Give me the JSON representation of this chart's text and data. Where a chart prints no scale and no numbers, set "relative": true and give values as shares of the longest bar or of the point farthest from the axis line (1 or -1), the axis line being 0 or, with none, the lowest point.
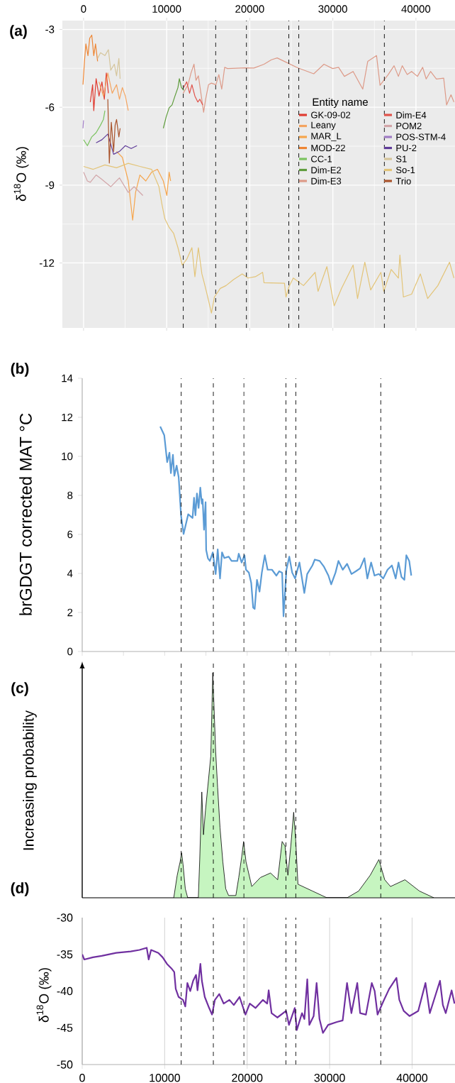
{
  "chart_data": [
    {
      "type": "line",
      "annotations": [
        "(a)"
      ],
      "ylabel": "δ$^{18}$O (‰)",
      "legend_title": "Entity name",
      "legend": "right",
      "grid": true,
      "xlim": [
        -2550,
        44700
      ],
      "ylim": [
        -14.5,
        -2.66
      ],
      "xticks": [
        0,
        10000,
        20000,
        30000,
        40000
      ],
      "yticks": [
        -12,
        -9,
        -6,
        -3
      ],
      "ref_lines": [
        {
          "axis": "x",
          "value": 12000
        },
        {
          "axis": "x",
          "value": 15900
        },
        {
          "axis": "x",
          "value": 19600
        },
        {
          "axis": "x",
          "value": 24700
        },
        {
          "axis": "x",
          "value": 25900
        },
        {
          "axis": "x",
          "value": 36200
        }
      ],
      "series": [
        {
          "name": "GK-09-02",
          "color": "#e03c31",
          "x": [
            810,
            1090,
            1230,
            1510,
            1860,
            2210,
            2500,
            2740,
            2990
          ],
          "values": [
            -5.8,
            -5.13,
            -6.13,
            -4.9,
            -5.57,
            -5.02,
            -5.69,
            -4.68,
            -5.46
          ]
        },
        {
          "name": "Leany",
          "color": "#f4a460",
          "x": [
            1860,
            2390,
            2920,
            3450,
            3970,
            4320,
            4670,
            5030,
            5380
          ],
          "values": [
            -5.02,
            -5.57,
            -4.68,
            -5.46,
            -5.13,
            -5.69,
            -5.24,
            -5.57,
            -6.13
          ]
        },
        {
          "name": "MAR_L",
          "color": "#f6a54c",
          "x": [
            3970,
            4670,
            5380,
            5910,
            6260,
            6780,
            7490,
            8190,
            8890,
            9600,
            10020,
            10300,
            10480
          ],
          "values": [
            -7.7,
            -7.93,
            -8.84,
            -10.35,
            -9.28,
            -8.61,
            -8.84,
            -8.5,
            -8.39,
            -8.84,
            -9.4,
            -8.5,
            -8.84
          ]
        },
        {
          "name": "MOD-22",
          "color": "#ee8533",
          "x": [
            -70,
            110,
            280,
            530,
            740,
            990,
            1230,
            1440,
            1690
          ],
          "values": [
            -5.13,
            -4.23,
            -3.56,
            -4.01,
            -3.34,
            -3.22,
            -4.01,
            -3.56,
            -4.23
          ]
        },
        {
          "name": "CC-1",
          "color": "#7bc35f",
          "x": [
            0,
            460,
            990,
            1510,
            2040,
            2390,
            2570
          ],
          "values": [
            -7.25,
            -7.48,
            -7.14,
            -6.98,
            -6.69,
            -6.47,
            -6.13
          ]
        },
        {
          "name": "Dim-E2",
          "color": "#5e9c3c",
          "x": [
            9600,
            9950,
            10300,
            10650,
            11000,
            11360,
            11530,
            11780,
            12060
          ],
          "values": [
            -6.81,
            -6.36,
            -6.02,
            -5.91,
            -5.57,
            -5.24,
            -4.9,
            -5.24,
            -5.35
          ]
        },
        {
          "name": "Dim-E3",
          "color": "#dd9a88",
          "x": [
            11990,
            12580,
            12930,
            13290,
            13530,
            13820,
            14170,
            14450,
            14690,
            15040,
            15390,
            15930,
            16280,
            16630,
            16980,
            17330,
            19440,
            20500,
            21720,
            22600,
            23300,
            24540,
            25760,
            27700,
            28930,
            29980,
            30690,
            31390,
            32440,
            33600,
            34200,
            35260,
            35680,
            36660,
            37370,
            37890,
            38350,
            38950,
            39480,
            40180,
            40810,
            41230,
            41760,
            42460,
            43340,
            43690,
            44220,
            44570
          ],
          "values": [
            -5.46,
            -5.13,
            -4.68,
            -4.34,
            -4.96,
            -4.79,
            -5.57,
            -6.19,
            -5.69,
            -5.13,
            -5.07,
            -5.13,
            -4.74,
            -5.3,
            -4.46,
            -4.51,
            -4.48,
            -4.49,
            -4.34,
            -4.17,
            -4.1,
            -4.29,
            -4.48,
            -4.71,
            -4.34,
            -4.51,
            -4.46,
            -4.81,
            -4.62,
            -5.3,
            -4.23,
            -4.01,
            -5.15,
            -4.74,
            -4.4,
            -4.81,
            -4.4,
            -4.74,
            -4.62,
            -4.81,
            -4.46,
            -4.91,
            -4.62,
            -4.91,
            -4.88,
            -5.91,
            -5.52,
            -5.8
          ]
        },
        {
          "name": "Dim-E4",
          "color": "#e0524a",
          "x": [
            12060,
            12410,
            12760,
            13040,
            13400,
            13750,
            13990,
            14340
          ],
          "values": [
            -5.24,
            -5.02,
            -5.46,
            -5.13,
            -5.57,
            -5.8,
            -5.69,
            -5.91
          ]
        },
        {
          "name": "POM2",
          "color": "#d2a5a8",
          "x": [
            0,
            460,
            810,
            1510,
            2210,
            3270,
            4320,
            5380,
            6080,
            7140
          ],
          "values": [
            -8.5,
            -8.84,
            -8.89,
            -8.61,
            -8.78,
            -9.06,
            -8.72,
            -9.28,
            -9.06,
            -9.4
          ]
        },
        {
          "name": "POS-STM-4",
          "color": "#a07cc5",
          "x": [
            -70,
            0
          ],
          "values": [
            -6.81,
            -6.5
          ]
        },
        {
          "name": "PU-2",
          "color": "#5f3c99",
          "x": [
            1510,
            2210,
            2920,
            3620,
            4320,
            5030,
            5730,
            6430
          ],
          "values": [
            -7.37,
            -7.25,
            -7.03,
            -7.81,
            -7.7,
            -7.48,
            -7.59,
            -7.48
          ]
        },
        {
          "name": "S1",
          "color": "#d5c59b",
          "x": [
            1690,
            2040,
            2570,
            2990,
            3270,
            3700,
            3970,
            4250,
            4400
          ],
          "values": [
            -4.12,
            -3.9,
            -4.01,
            -3.78,
            -4.57,
            -4.34,
            -4.79,
            -4.12,
            -4.9
          ]
        },
        {
          "name": "So-1",
          "color": "#e3c478",
          "x": [
            0,
            1160,
            2570,
            3970,
            5380,
            6780,
            8190,
            9070,
            9430,
            9780,
            10300,
            10830,
            11360,
            11880,
            12410,
            13040,
            13400,
            13820,
            14240,
            14520,
            14940,
            15390,
            15750,
            16450,
            17150,
            18040,
            19090,
            19790,
            20670,
            21550,
            21720,
            24180,
            24360,
            24710,
            25240,
            26470,
            27870,
            28220,
            29280,
            30160,
            31040,
            32440,
            32970,
            33850,
            34550,
            35780,
            36130,
            37020,
            37890,
            38070,
            38490,
            39480,
            40530,
            41410,
            42640,
            44040,
            44570
          ],
          "values": [
            -8.28,
            -8.39,
            -8.22,
            -8.33,
            -8.16,
            -8.28,
            -8.39,
            -9.06,
            -9.73,
            -10.29,
            -10.63,
            -10.85,
            -11.41,
            -12.08,
            -11.86,
            -11.41,
            -12.53,
            -11.41,
            -12.42,
            -12.76,
            -13.31,
            -13.93,
            -13.31,
            -12.98,
            -12.87,
            -12.64,
            -12.42,
            -12.58,
            -12.53,
            -12.36,
            -12.76,
            -12.78,
            -13.31,
            -12.92,
            -12.58,
            -12.87,
            -12.36,
            -13.09,
            -12.14,
            -13.65,
            -12.98,
            -12.08,
            -13.37,
            -11.97,
            -13.04,
            -12.36,
            -13.09,
            -12.25,
            -12.58,
            -11.69,
            -13.31,
            -13.2,
            -12.42,
            -13.37,
            -12.87,
            -11.97,
            -12.58
          ]
        },
        {
          "name": "Trio",
          "color": "#a9532b",
          "x": [
            2920,
            3100,
            3340,
            3620,
            3800,
            3970,
            4250,
            4400
          ],
          "values": [
            -5.69,
            -8.15,
            -6.58,
            -7.7,
            -6.69,
            -6.47,
            -7.14,
            -6.81
          ]
        }
      ]
    },
    {
      "type": "line",
      "annotations": [
        "(b)"
      ],
      "ylabel": "brGDGT corrected MAT °C",
      "tick_labels": "y",
      "xlim": [
        0,
        45200
      ],
      "ylim": [
        0,
        14
      ],
      "yticks": [
        0,
        2,
        4,
        6,
        8,
        10,
        12,
        14
      ],
      "xticks": [
        {
          "value": 0,
          "label": null
        },
        {
          "value": 5000,
          "label": null
        },
        {
          "value": 10000,
          "label": null
        },
        {
          "value": 15000,
          "label": null
        },
        {
          "value": 20000,
          "label": null
        },
        {
          "value": 25000,
          "label": null
        },
        {
          "value": 30000,
          "label": null
        },
        {
          "value": 35000,
          "label": null
        },
        {
          "value": 40000,
          "label": null
        }
      ],
      "ref_lines": [
        {
          "axis": "x",
          "value": 12000
        },
        {
          "axis": "x",
          "value": 15900
        },
        {
          "axis": "x",
          "value": 19600
        },
        {
          "axis": "x",
          "value": 24700
        },
        {
          "axis": "x",
          "value": 25900
        },
        {
          "axis": "x",
          "value": 36200
        }
      ],
      "series": [
        {
          "color": "#5b9bd5",
          "x": [
            9460,
            9950,
            10300,
            10580,
            10750,
            11000,
            11170,
            11450,
            11700,
            11980,
            12290,
            12850,
            13380,
            13560,
            13730,
            13910,
            14110,
            14320,
            14500,
            14600,
            14770,
            14960,
            15030,
            15240,
            15480,
            15830,
            16180,
            16430,
            16710,
            16950,
            17230,
            17760,
            18110,
            18810,
            18980,
            19330,
            19680,
            19860,
            20210,
            20490,
            20730,
            20910,
            21190,
            21500,
            21780,
            22140,
            22480,
            23010,
            23540,
            23890,
            24240,
            24410,
            24760,
            25110,
            25460,
            25810,
            26340,
            26930,
            27280,
            27910,
            28200,
            28790,
            29320,
            29850,
            30190,
            30710,
            31070,
            31590,
            32120,
            32650,
            33170,
            33690,
            34220,
            34570,
            35030,
            35440,
            35970,
            36500,
            37020,
            37550,
            38010,
            38350,
            38710,
            39060,
            39300,
            39650,
            39900
          ],
          "values": [
            11.53,
            11.08,
            9.7,
            10.19,
            9.14,
            10.08,
            9.0,
            9.52,
            8.92,
            6.98,
            6.02,
            7.03,
            6.84,
            7.88,
            6.98,
            8.1,
            7.36,
            8.4,
            7.58,
            7.8,
            6.24,
            7.65,
            5.2,
            4.78,
            4.64,
            5.08,
            3.97,
            5.23,
            3.74,
            5.08,
            4.79,
            4.86,
            4.64,
            4.64,
            5.01,
            4.56,
            4.93,
            4.19,
            4.04,
            3.52,
            2.25,
            2.18,
            3.67,
            3.07,
            4.04,
            4.93,
            4.19,
            4.19,
            3.89,
            4.11,
            4.04,
            1.8,
            4.19,
            4.86,
            4.04,
            3.74,
            4.56,
            3.0,
            3.97,
            4.41,
            4.71,
            4.64,
            4.34,
            3.89,
            3.44,
            4.04,
            4.64,
            4.19,
            4.49,
            3.97,
            4.11,
            4.26,
            4.78,
            3.74,
            4.56,
            3.89,
            3.97,
            3.74,
            4.19,
            4.41,
            3.74,
            4.56,
            3.82,
            3.67,
            4.93,
            4.64,
            3.89
          ]
        }
      ]
    },
    {
      "type": "area",
      "relative": true,
      "annotations": [
        "(c)"
      ],
      "ylabel": "Increasing probability",
      "tick_labels": false,
      "xlim": [
        0,
        45200
      ],
      "ref_lines": [
        {
          "axis": "x",
          "value": 12000
        },
        {
          "axis": "x",
          "value": 15900
        },
        {
          "axis": "x",
          "value": 19600
        },
        {
          "axis": "x",
          "value": 24700
        },
        {
          "axis": "x",
          "value": 25900
        },
        {
          "axis": "x",
          "value": 36200
        }
      ],
      "series": [
        {
          "color": "#c6f5c0",
          "x": [
            11100,
            11520,
            11870,
            12050,
            12220,
            12500,
            12790,
            14080,
            14250,
            14500,
            14700,
            14950,
            15300,
            15590,
            15830,
            16180,
            16420,
            16710,
            17050,
            17400,
            17750,
            18630,
            18980,
            19330,
            19570,
            19860,
            20560,
            21610,
            22830,
            23700,
            24240,
            24590,
            24940,
            25290,
            25640,
            25880,
            26160,
            27910,
            29660,
            32120,
            33520,
            34920,
            35970,
            36680,
            37380,
            39130,
            40880,
            42630
          ],
          "values": [
            0,
            0.1,
            0.16,
            0.2,
            0.15,
            0.04,
            0,
            0,
            0.17,
            0.47,
            0.28,
            0.39,
            0.52,
            0.63,
            1,
            0.65,
            0.49,
            0.31,
            0.16,
            0.04,
            0.01,
            0.01,
            0.09,
            0.18,
            0.25,
            0.16,
            0.05,
            0.09,
            0.11,
            0.08,
            0.25,
            0.23,
            0.1,
            0.23,
            0.38,
            0.26,
            0.06,
            0.03,
            0,
            0,
            0.03,
            0.1,
            0.17,
            0.08,
            0.05,
            0.08,
            0.03,
            0
          ]
        }
      ]
    },
    {
      "type": "line",
      "annotations": [
        "(d)"
      ],
      "ylabel": "δ$^{18}$O (‰)",
      "grid": "x",
      "xlim": [
        0,
        45200
      ],
      "ylim": [
        -50,
        -30
      ],
      "xticks": [
        0,
        10000,
        20000,
        30000,
        40000
      ],
      "yticks": [
        -50,
        -45,
        -40,
        -35,
        -30
      ],
      "ref_lines": [
        {
          "axis": "x",
          "value": 12000
        },
        {
          "axis": "x",
          "value": 15900
        },
        {
          "axis": "x",
          "value": 19600
        },
        {
          "axis": "x",
          "value": 24700
        },
        {
          "axis": "x",
          "value": 25900
        },
        {
          "axis": "x",
          "value": 36200
        }
      ],
      "series": [
        {
          "color": "#7030a0",
          "x": [
            0,
            250,
            1300,
            2360,
            4120,
            5880,
            6940,
            7820,
            8060,
            8350,
            9230,
            9750,
            10280,
            10810,
            11160,
            11340,
            11690,
            12220,
            12500,
            12750,
            13100,
            13450,
            13800,
            13980,
            14330,
            14510,
            14860,
            15390,
            15740,
            16090,
            16620,
            17150,
            17850,
            18380,
            19080,
            19790,
            20320,
            21020,
            21900,
            22430,
            22610,
            22960,
            23660,
            24720,
            25070,
            25770,
            26020,
            26650,
            26940,
            27290,
            27540,
            28060,
            28420,
            28770,
            29190,
            29820,
            30880,
            31580,
            32110,
            32640,
            33350,
            33700,
            34400,
            35110,
            35460,
            35810,
            36510,
            37220,
            38100,
            38450,
            38980,
            39680,
            40740,
            41620,
            42150,
            43380,
            43730,
            44080,
            44790,
            45140
          ],
          "values": [
            -35.0,
            -35.7,
            -35.4,
            -35.2,
            -34.8,
            -34.6,
            -34.4,
            -34.1,
            -35.7,
            -34.4,
            -34.8,
            -35.4,
            -36.3,
            -36.9,
            -37.4,
            -39.7,
            -40.8,
            -41.2,
            -42.1,
            -38.9,
            -40.0,
            -38.6,
            -37.8,
            -39.9,
            -36.3,
            -38.6,
            -40.8,
            -42.3,
            -43.2,
            -41.2,
            -40.4,
            -41.7,
            -41.2,
            -41.9,
            -40.8,
            -43.2,
            -41.7,
            -42.3,
            -41.2,
            -41.7,
            -39.9,
            -43.0,
            -43.6,
            -42.7,
            -44.6,
            -42.3,
            -45.3,
            -43.0,
            -43.8,
            -38.4,
            -44.6,
            -43.4,
            -38.9,
            -43.8,
            -45.7,
            -44.6,
            -44.2,
            -44.0,
            -38.9,
            -43.0,
            -38.9,
            -43.0,
            -43.2,
            -38.9,
            -40.0,
            -43.2,
            -41.4,
            -39.7,
            -38.2,
            -41.2,
            -42.7,
            -43.4,
            -42.7,
            -38.9,
            -43.0,
            -38.6,
            -41.9,
            -43.0,
            -39.9,
            -41.7
          ]
        }
      ]
    }
  ]
}
